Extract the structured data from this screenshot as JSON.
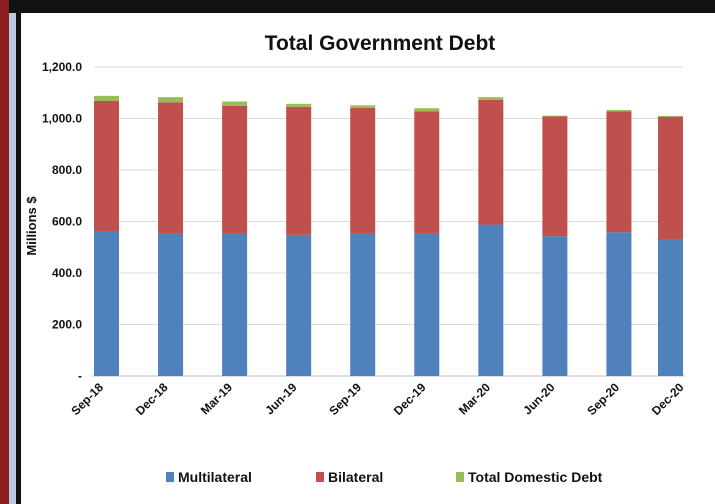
{
  "chart_data": {
    "type": "bar",
    "stacked": true,
    "title": "Total Government Debt",
    "xlabel": "",
    "ylabel": "Millions $",
    "ylim": [
      0,
      1200
    ],
    "yticks": [
      "-",
      "200.0",
      "400.0",
      "600.0",
      "800.0",
      "1,000.0",
      "1,200.0"
    ],
    "grid": true,
    "legend_position": "bottom",
    "categories": [
      "Sep-18",
      "Dec-18",
      "Mar-19",
      "Jun-19",
      "Sep-19",
      "Dec-19",
      "Mar-20",
      "Jun-20",
      "Sep-20",
      "Dec-20"
    ],
    "series": [
      {
        "name": "Multilateral",
        "color": "#4f81bd",
        "values": [
          563,
          553,
          553,
          548,
          553,
          553,
          588,
          543,
          558,
          532
        ]
      },
      {
        "name": "Bilateral",
        "color": "#c0504d",
        "values": [
          505,
          510,
          496,
          497,
          488,
          475,
          485,
          465,
          470,
          475
        ]
      },
      {
        "name": "Total Domestic Debt",
        "color": "#9bbb59",
        "values": [
          20,
          20,
          17,
          12,
          10,
          12,
          10,
          3,
          5,
          3
        ]
      }
    ]
  }
}
